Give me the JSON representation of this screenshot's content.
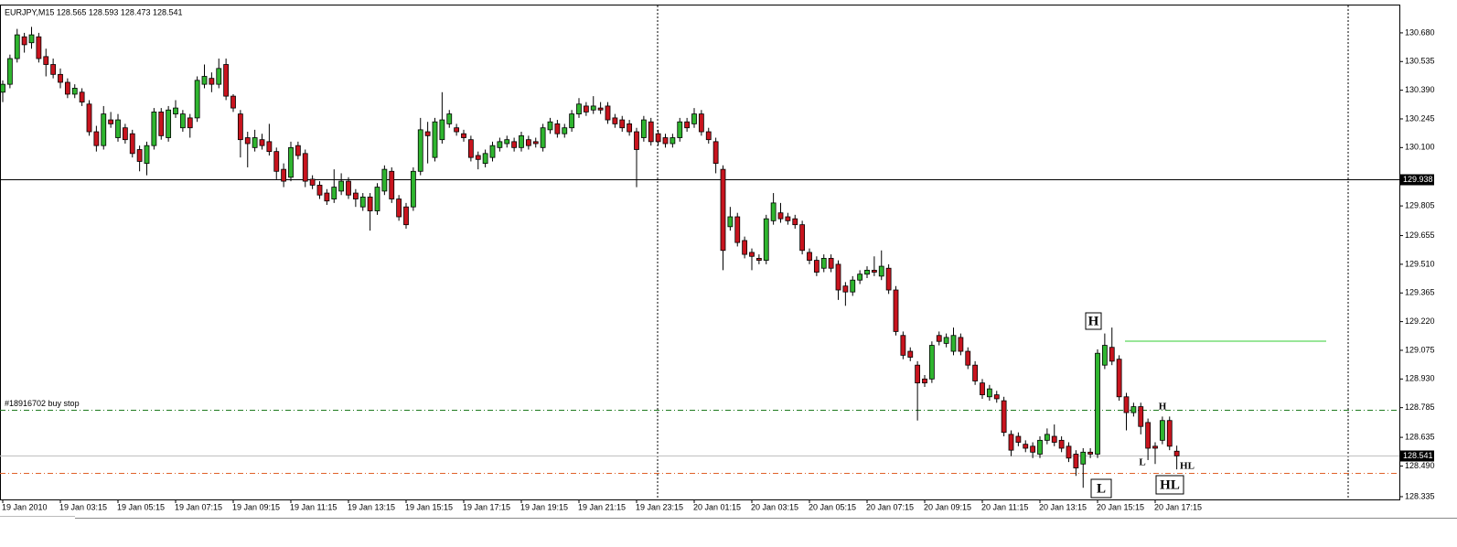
{
  "chart_data": {
    "type": "candlestick",
    "title": "EURJPY,M15  128.565 128.593 128.473 128.541",
    "categories": [
      "19 Jan 2010",
      null,
      null,
      null,
      null,
      null,
      null,
      null,
      "19 Jan 03:15",
      null,
      null,
      null,
      null,
      null,
      null,
      null,
      "19 Jan 05:15",
      null,
      null,
      null,
      null,
      null,
      null,
      null,
      "19 Jan 07:15",
      null,
      null,
      null,
      null,
      null,
      null,
      null,
      "19 Jan 09:15",
      null,
      null,
      null,
      null,
      null,
      null,
      null,
      "19 Jan 11:15",
      null,
      null,
      null,
      null,
      null,
      null,
      null,
      "19 Jan 13:15",
      null,
      null,
      null,
      null,
      null,
      null,
      null,
      "19 Jan 15:15",
      null,
      null,
      null,
      null,
      null,
      null,
      null,
      "19 Jan 17:15",
      null,
      null,
      null,
      null,
      null,
      null,
      null,
      "19 Jan 19:15",
      null,
      null,
      null,
      null,
      null,
      null,
      null,
      "19 Jan 21:15",
      null,
      null,
      null,
      null,
      null,
      null,
      null,
      "19 Jan 23:15",
      null,
      null,
      null,
      null,
      null,
      null,
      null,
      "20 Jan 01:15",
      null,
      null,
      null,
      null,
      null,
      null,
      null,
      "20 Jan 03:15",
      null,
      null,
      null,
      null,
      null,
      null,
      null,
      "20 Jan 05:15",
      null,
      null,
      null,
      null,
      null,
      null,
      null,
      "20 Jan 07:15",
      null,
      null,
      null,
      null,
      null,
      null,
      null,
      "20 Jan 09:15",
      null,
      null,
      null,
      null,
      null,
      null,
      null,
      "20 Jan 11:15",
      null,
      null,
      null,
      null,
      null,
      null,
      null,
      "20 Jan 13:15",
      null,
      null,
      null,
      null,
      null,
      null,
      null,
      "20 Jan 15:15",
      null,
      null,
      null,
      null,
      null,
      null,
      null,
      "20 Jan 17:15",
      null,
      null,
      null
    ],
    "open": [
      130.38,
      130.42,
      130.55,
      130.66,
      130.63,
      130.66,
      130.56,
      130.52,
      130.47,
      130.43,
      130.37,
      130.38,
      130.32,
      130.18,
      130.11,
      130.24,
      130.15,
      130.2,
      130.17,
      130.09,
      130.02,
      130.11,
      130.28,
      130.15,
      130.27,
      130.2,
      130.25,
      130.25,
      130.42,
      130.45,
      130.42,
      130.52,
      130.36,
      130.27,
      130.15,
      130.1,
      130.14,
      130.13,
      130.08,
      129.99,
      129.95,
      130.11,
      130.07,
      129.94,
      129.91,
      129.87,
      129.84,
      129.88,
      129.93,
      129.87,
      129.8,
      129.85,
      129.78,
      129.88,
      129.98,
      129.84,
      129.8,
      129.8,
      129.98,
      130.18,
      130.05,
      130.14,
      130.22,
      130.2,
      130.17,
      130.14,
      130.06,
      130.02,
      130.05,
      130.1,
      130.12,
      130.13,
      130.1,
      130.14,
      130.13,
      130.1,
      130.19,
      130.22,
      130.17,
      130.2,
      130.27,
      130.31,
      130.29,
      130.3,
      130.31,
      130.25,
      130.24,
      130.22,
      130.18,
      130.15,
      130.23,
      130.17,
      130.15,
      130.12,
      130.15,
      130.23,
      130.22,
      130.27,
      130.18,
      130.13,
      129.99,
      129.7,
      129.75,
      129.63,
      129.57,
      129.54,
      129.53,
      129.73,
      129.77,
      129.75,
      129.74,
      129.71,
      129.57,
      129.53,
      129.49,
      129.54,
      129.51,
      129.4,
      129.37,
      129.43,
      129.46,
      129.48,
      129.45,
      129.49,
      129.38,
      129.15,
      129.07,
      129.0,
      128.93,
      128.93,
      129.15,
      129.11,
      129.07,
      129.14,
      129.07,
      129.0,
      128.91,
      128.84,
      128.85,
      128.82,
      128.65,
      128.64,
      128.6,
      128.59,
      128.55,
      128.62,
      128.64,
      128.62,
      128.59,
      128.55,
      128.5,
      128.56,
      128.55,
      129.0,
      129.09,
      129.03,
      128.84,
      128.76,
      128.79,
      128.71,
      128.59,
      128.62,
      128.72,
      128.565
    ],
    "high": [
      130.44,
      130.57,
      130.7,
      130.68,
      130.71,
      130.68,
      130.6,
      130.55,
      130.5,
      130.45,
      130.42,
      130.4,
      130.34,
      130.21,
      130.31,
      130.28,
      130.27,
      130.22,
      130.19,
      130.11,
      130.13,
      130.3,
      130.3,
      130.31,
      130.34,
      130.29,
      130.27,
      130.46,
      130.52,
      130.48,
      130.55,
      130.55,
      130.37,
      130.29,
      130.18,
      130.19,
      130.17,
      130.22,
      130.1,
      130.02,
      130.13,
      130.13,
      130.09,
      129.96,
      129.93,
      129.89,
      129.99,
      129.97,
      129.95,
      129.89,
      129.87,
      129.87,
      129.92,
      130.01,
      130.0,
      129.86,
      129.82,
      130.0,
      130.25,
      130.23,
      130.25,
      130.38,
      130.29,
      130.22,
      130.19,
      130.16,
      130.08,
      130.09,
      130.13,
      130.15,
      130.16,
      130.15,
      130.18,
      130.16,
      130.15,
      130.22,
      130.25,
      130.24,
      130.22,
      130.29,
      130.35,
      130.33,
      130.36,
      130.33,
      130.33,
      130.27,
      130.26,
      130.24,
      130.2,
      130.26,
      130.25,
      130.19,
      130.17,
      130.17,
      130.25,
      130.25,
      130.3,
      130.29,
      130.2,
      130.15,
      130.01,
      129.8,
      129.77,
      129.65,
      129.59,
      129.56,
      129.76,
      129.87,
      129.82,
      129.77,
      129.76,
      129.73,
      129.59,
      129.55,
      129.56,
      129.56,
      129.53,
      129.42,
      129.45,
      129.48,
      129.5,
      129.55,
      129.58,
      129.51,
      129.4,
      129.17,
      129.09,
      129.02,
      128.95,
      129.12,
      129.17,
      129.16,
      129.19,
      129.16,
      129.09,
      129.02,
      128.93,
      128.9,
      128.87,
      128.84,
      128.67,
      128.66,
      128.62,
      128.61,
      128.64,
      128.68,
      128.7,
      128.64,
      128.61,
      128.57,
      128.58,
      128.58,
      129.08,
      129.16,
      129.19,
      129.05,
      128.86,
      128.81,
      128.81,
      128.73,
      128.61,
      128.74,
      128.74,
      128.593
    ],
    "low": [
      130.33,
      130.4,
      130.53,
      130.58,
      130.6,
      130.53,
      130.46,
      130.45,
      130.4,
      130.35,
      130.35,
      130.31,
      130.16,
      130.08,
      130.09,
      130.2,
      130.13,
      130.12,
      130.05,
      129.98,
      129.96,
      130.09,
      130.14,
      130.13,
      130.25,
      130.18,
      130.15,
      130.23,
      130.4,
      130.38,
      130.4,
      130.34,
      130.28,
      130.05,
      130.0,
      130.08,
      130.09,
      130.06,
      129.94,
      129.9,
      129.93,
      130.04,
      129.9,
      129.89,
      129.84,
      129.81,
      129.82,
      129.86,
      129.84,
      129.8,
      129.78,
      129.68,
      129.76,
      129.86,
      129.82,
      129.73,
      129.69,
      129.78,
      129.96,
      130.02,
      130.03,
      130.12,
      130.2,
      130.16,
      130.13,
      130.03,
      129.99,
      130.0,
      130.03,
      130.08,
      130.1,
      130.08,
      130.08,
      130.09,
      130.1,
      130.08,
      130.17,
      130.15,
      130.15,
      130.18,
      130.25,
      130.26,
      130.27,
      130.27,
      130.22,
      130.2,
      130.18,
      130.16,
      129.9,
      130.13,
      130.11,
      130.11,
      130.1,
      130.1,
      130.13,
      130.18,
      130.2,
      130.16,
      130.12,
      129.97,
      129.48,
      129.68,
      129.6,
      129.54,
      129.48,
      129.51,
      129.51,
      129.71,
      129.72,
      129.71,
      129.69,
      129.56,
      129.51,
      129.45,
      129.47,
      129.47,
      129.33,
      129.3,
      129.35,
      129.41,
      129.44,
      129.45,
      129.43,
      129.36,
      129.15,
      129.03,
      129.02,
      128.72,
      128.89,
      128.91,
      129.1,
      129.09,
      129.05,
      129.05,
      128.98,
      128.9,
      128.83,
      128.82,
      128.81,
      128.64,
      128.54,
      128.59,
      128.56,
      128.53,
      128.53,
      128.6,
      128.59,
      128.56,
      128.51,
      128.44,
      128.38,
      128.53,
      128.53,
      128.98,
      129.0,
      128.82,
      128.67,
      128.74,
      128.65,
      128.52,
      128.5,
      128.6,
      128.57,
      128.473
    ],
    "close": [
      130.42,
      130.55,
      130.67,
      130.62,
      130.67,
      130.55,
      130.52,
      130.47,
      130.43,
      130.37,
      130.4,
      130.33,
      130.18,
      130.11,
      130.27,
      130.22,
      130.24,
      130.14,
      130.07,
      130.03,
      130.11,
      130.28,
      130.16,
      130.29,
      130.3,
      130.27,
      130.2,
      130.44,
      130.46,
      130.42,
      130.5,
      130.36,
      130.3,
      130.14,
      130.12,
      130.15,
      130.11,
      130.08,
      129.98,
      129.93,
      130.1,
      130.06,
      129.93,
      129.91,
      129.86,
      129.83,
      129.9,
      129.93,
      129.86,
      129.84,
      129.85,
      129.78,
      129.9,
      129.99,
      129.84,
      129.75,
      129.71,
      129.98,
      130.19,
      130.16,
      130.23,
      130.24,
      130.27,
      130.18,
      130.15,
      130.05,
      130.04,
      130.07,
      130.11,
      130.13,
      130.14,
      130.1,
      130.16,
      130.11,
      130.12,
      130.2,
      130.23,
      130.17,
      130.2,
      130.27,
      130.32,
      130.28,
      130.31,
      130.29,
      130.24,
      130.22,
      130.2,
      130.18,
      130.09,
      130.24,
      130.13,
      130.13,
      130.12,
      130.15,
      130.23,
      130.2,
      130.27,
      130.18,
      130.14,
      130.02,
      129.58,
      129.75,
      129.62,
      129.56,
      129.55,
      129.53,
      129.74,
      129.82,
      129.74,
      129.73,
      129.71,
      129.58,
      129.53,
      129.47,
      129.54,
      129.49,
      129.38,
      129.37,
      129.43,
      129.46,
      129.48,
      129.47,
      129.5,
      129.38,
      129.17,
      129.05,
      129.04,
      128.91,
      128.91,
      129.1,
      129.12,
      129.14,
      129.15,
      129.07,
      129.0,
      128.92,
      128.85,
      128.88,
      128.83,
      128.66,
      128.57,
      128.61,
      128.58,
      128.56,
      128.62,
      128.65,
      128.61,
      128.58,
      128.53,
      128.48,
      128.56,
      128.55,
      129.06,
      129.1,
      129.02,
      128.84,
      128.76,
      128.79,
      128.69,
      128.58,
      128.58,
      128.72,
      128.59,
      128.541
    ],
    "up_color": "#2fb52f",
    "down_color": "#c8141e",
    "ylim": [
      128.321,
      130.823
    ],
    "yticks": [
      {
        "value": 130.68,
        "label": "130.680"
      },
      {
        "value": 130.535,
        "label": "130.535"
      },
      {
        "value": 130.39,
        "label": "130.390"
      },
      {
        "value": 130.245,
        "label": "130.245"
      },
      {
        "value": 130.1,
        "label": "130.100"
      },
      {
        "value": 129.805,
        "label": "129.805"
      },
      {
        "value": 129.655,
        "label": "129.655"
      },
      {
        "value": 129.51,
        "label": "129.510"
      },
      {
        "value": 129.365,
        "label": "129.365"
      },
      {
        "value": 129.22,
        "label": "129.220"
      },
      {
        "value": 129.075,
        "label": "129.075"
      },
      {
        "value": 128.93,
        "label": "128.930"
      },
      {
        "value": 128.785,
        "label": "128.785"
      },
      {
        "value": 128.635,
        "label": "128.635"
      },
      {
        "value": 128.49,
        "label": "128.490"
      },
      {
        "value": 128.335,
        "label": "128.335"
      }
    ],
    "grid": false,
    "horizontal_lines": [
      {
        "value": 129.938,
        "color": "#000000",
        "style": "solid",
        "axis_box": true
      },
      {
        "value": 128.541,
        "color": "#c0c0c0",
        "style": "solid",
        "axis_box": true
      },
      {
        "value": 128.775,
        "color": "#1e7a1e",
        "style": "dash-dot",
        "label": "#18916702 buy stop"
      },
      {
        "value": 128.455,
        "color": "#e0622a",
        "style": "dash-dot"
      }
    ],
    "trend_line": {
      "value": 129.121,
      "color": "#33cc33"
    },
    "annotations": [
      "H",
      "L",
      "HL",
      "H",
      "L",
      "HL"
    ]
  }
}
